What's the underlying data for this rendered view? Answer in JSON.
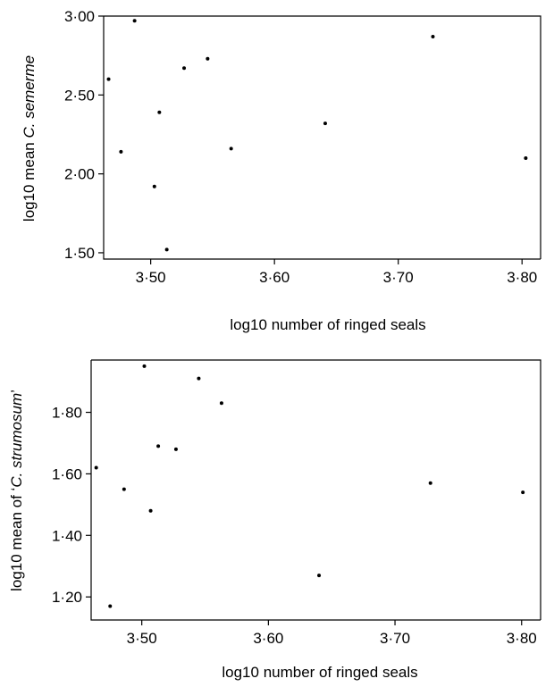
{
  "chart_data": [
    {
      "type": "scatter",
      "xlabel": "log10 number of ringed seals",
      "ylabel_prefix": "log10 mean ",
      "ylabel_italic": "C. semerme",
      "ylabel_suffix": "",
      "xlim": [
        3.462,
        3.815
      ],
      "ylim": [
        1.46,
        3.0
      ],
      "xticks": [
        3.5,
        3.6,
        3.7,
        3.8
      ],
      "xtick_labels": [
        "3·50",
        "3·60",
        "3·70",
        "3·80"
      ],
      "yticks": [
        1.5,
        2.0,
        2.5,
        3.0
      ],
      "ytick_labels": [
        "1·50",
        "2·00",
        "2·50",
        "3·00"
      ],
      "grid": false,
      "points": [
        {
          "x": 3.466,
          "y": 2.6
        },
        {
          "x": 3.476,
          "y": 2.14
        },
        {
          "x": 3.487,
          "y": 2.97
        },
        {
          "x": 3.503,
          "y": 1.92
        },
        {
          "x": 3.507,
          "y": 2.39
        },
        {
          "x": 3.513,
          "y": 1.52
        },
        {
          "x": 3.527,
          "y": 2.67
        },
        {
          "x": 3.546,
          "y": 2.73
        },
        {
          "x": 3.565,
          "y": 2.16
        },
        {
          "x": 3.641,
          "y": 2.32
        },
        {
          "x": 3.728,
          "y": 2.87
        },
        {
          "x": 3.803,
          "y": 2.1
        }
      ]
    },
    {
      "type": "scatter",
      "xlabel": "log10 number of ringed seals",
      "ylabel_prefix": "log10 mean of ‘",
      "ylabel_italic": "C. strumosum",
      "ylabel_suffix": "’",
      "xlim": [
        3.46,
        3.815
      ],
      "ylim": [
        1.125,
        1.97
      ],
      "xticks": [
        3.5,
        3.6,
        3.7,
        3.8
      ],
      "xtick_labels": [
        "3·50",
        "3·60",
        "3·70",
        "3·80"
      ],
      "yticks": [
        1.2,
        1.4,
        1.6,
        1.8
      ],
      "ytick_labels": [
        "1·20",
        "1·40",
        "1·60",
        "1·80"
      ],
      "grid": false,
      "points": [
        {
          "x": 3.464,
          "y": 1.62
        },
        {
          "x": 3.475,
          "y": 1.17
        },
        {
          "x": 3.486,
          "y": 1.55
        },
        {
          "x": 3.502,
          "y": 1.95
        },
        {
          "x": 3.507,
          "y": 1.48
        },
        {
          "x": 3.513,
          "y": 1.69
        },
        {
          "x": 3.527,
          "y": 1.68
        },
        {
          "x": 3.545,
          "y": 1.91
        },
        {
          "x": 3.563,
          "y": 1.83
        },
        {
          "x": 3.64,
          "y": 1.27
        },
        {
          "x": 3.728,
          "y": 1.57
        },
        {
          "x": 3.801,
          "y": 1.54
        }
      ]
    }
  ]
}
